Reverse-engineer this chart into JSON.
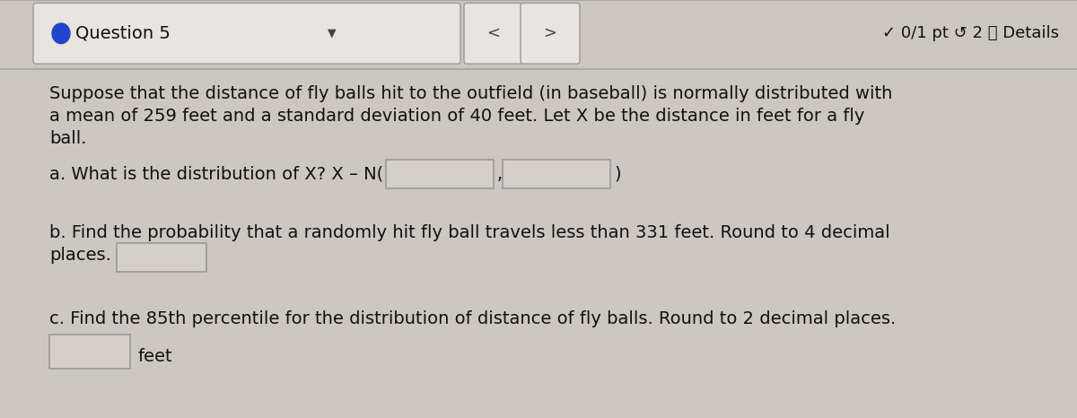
{
  "title_text": "Question 5",
  "header_right": "✓ 0/1 pt ↺ 2 ⓘ Details",
  "bg_color": "#cdc8bf",
  "header_bg": "#e8e4de",
  "content_bg": "#d4cfc7",
  "input_box_bg": "#d4cfc7",
  "input_box_edge": "#999999",
  "white": "#ffffff",
  "body_text_1": "Suppose that the distance of fly balls hit to the outfield (in baseball) is normally distributed with",
  "body_text_2": "a mean of 259 feet and a standard deviation of 40 feet. Let X be the distance in feet for a fly",
  "body_text_3": "ball.",
  "part_a": "a. What is the distribution of X? X – N(",
  "part_a_comma": ",",
  "part_a_end": ")",
  "part_b_1": "b. Find the probability that a randomly hit fly ball travels less than 331 feet. Round to 4 decimal",
  "part_b_2": "places.",
  "part_c": "c. Find the 85th percentile for the distribution of distance of fly balls. Round to 2 decimal places.",
  "feet_label": "feet",
  "font_size_body": 14,
  "font_size_header": 13,
  "text_color": "#111111"
}
